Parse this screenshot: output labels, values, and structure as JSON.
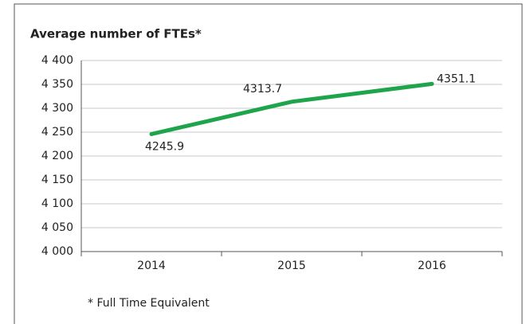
{
  "chart_data": {
    "type": "line",
    "title": "Average number of FTEs*",
    "categories": [
      "2014",
      "2015",
      "2016"
    ],
    "series": [
      {
        "name": "Average number of FTEs",
        "color": "#1ea44b",
        "values": [
          4245.9,
          4313.7,
          4351.1
        ]
      }
    ],
    "ylim": [
      4000,
      4400
    ],
    "yticks": [
      {
        "value": 4000,
        "label": "4 000"
      },
      {
        "value": 4050,
        "label": "4 050"
      },
      {
        "value": 4100,
        "label": "4 100"
      },
      {
        "value": 4150,
        "label": "4 150"
      },
      {
        "value": 4200,
        "label": "4 200"
      },
      {
        "value": 4250,
        "label": "4 250"
      },
      {
        "value": 4300,
        "label": "4 300"
      },
      {
        "value": 4350,
        "label": "4 350"
      },
      {
        "value": 4400,
        "label": "4 400"
      }
    ],
    "grid": true,
    "footnote": "* Full Time Equivalent"
  }
}
